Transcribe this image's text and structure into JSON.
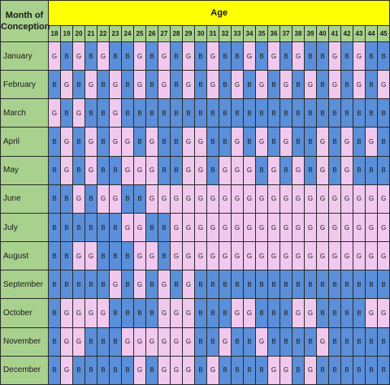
{
  "corner": {
    "line1": "Month of",
    "line2": "Conception"
  },
  "age_title": "Age",
  "colors": {
    "boy": "#5b8fd9",
    "girl": "#f1c9ef",
    "header_green": "#a9d18e",
    "header_yellow": "#ffff00",
    "grid": "#2b2b2b"
  },
  "ages": [
    "18",
    "19",
    "20",
    "21",
    "22",
    "23",
    "24",
    "25",
    "26",
    "27",
    "28",
    "29",
    "30",
    "31",
    "32",
    "33",
    "34",
    "35",
    "36",
    "37",
    "38",
    "39",
    "40",
    "41",
    "42",
    "43",
    "44",
    "45"
  ],
  "months": [
    "January",
    "February",
    "March",
    "April",
    "May",
    "June",
    "July",
    "August",
    "September",
    "October",
    "November",
    "December"
  ],
  "rows": [
    [
      "G",
      "B",
      "G",
      "B",
      "G",
      "B",
      "B",
      "G",
      "B",
      "G",
      "B",
      "G",
      "B",
      "G",
      "B",
      "B",
      "G",
      "B",
      "G",
      "B",
      "G",
      "B",
      "B",
      "G",
      "B",
      "G",
      "B",
      "B"
    ],
    [
      "B",
      "G",
      "B",
      "G",
      "B",
      "G",
      "B",
      "G",
      "B",
      "G",
      "B",
      "G",
      "B",
      "G",
      "B",
      "G",
      "B",
      "G",
      "B",
      "G",
      "B",
      "G",
      "B",
      "G",
      "B",
      "G",
      "B",
      "G"
    ],
    [
      "G",
      "B",
      "G",
      "B",
      "B",
      "G",
      "B",
      "B",
      "B",
      "B",
      "B",
      "B",
      "B",
      "B",
      "B",
      "B",
      "B",
      "B",
      "B",
      "B",
      "B",
      "B",
      "B",
      "B",
      "B",
      "B",
      "B",
      "B"
    ],
    [
      "B",
      "G",
      "B",
      "G",
      "B",
      "G",
      "G",
      "B",
      "G",
      "B",
      "B",
      "G",
      "G",
      "B",
      "B",
      "G",
      "B",
      "G",
      "B",
      "G",
      "B",
      "B",
      "G",
      "B",
      "G",
      "B",
      "G",
      "B"
    ],
    [
      "B",
      "G",
      "B",
      "G",
      "B",
      "B",
      "G",
      "G",
      "G",
      "B",
      "B",
      "G",
      "G",
      "B",
      "G",
      "G",
      "G",
      "B",
      "G",
      "B",
      "G",
      "B",
      "G",
      "B",
      "G",
      "B",
      "B",
      "B"
    ],
    [
      "B",
      "B",
      "G",
      "B",
      "G",
      "G",
      "B",
      "B",
      "G",
      "G",
      "G",
      "G",
      "G",
      "G",
      "G",
      "G",
      "G",
      "G",
      "G",
      "G",
      "G",
      "G",
      "G",
      "G",
      "G",
      "G",
      "G",
      "G"
    ],
    [
      "B",
      "B",
      "B",
      "B",
      "B",
      "B",
      "G",
      "G",
      "B",
      "B",
      "G",
      "G",
      "G",
      "G",
      "G",
      "G",
      "G",
      "G",
      "G",
      "G",
      "G",
      "G",
      "G",
      "G",
      "G",
      "G",
      "G",
      "G"
    ],
    [
      "B",
      "B",
      "G",
      "G",
      "B",
      "B",
      "B",
      "G",
      "G",
      "B",
      "G",
      "G",
      "G",
      "G",
      "G",
      "G",
      "G",
      "G",
      "G",
      "G",
      "G",
      "G",
      "G",
      "G",
      "G",
      "G",
      "G",
      "G"
    ],
    [
      "B",
      "B",
      "B",
      "B",
      "B",
      "G",
      "B",
      "G",
      "B",
      "G",
      "B",
      "G",
      "B",
      "B",
      "B",
      "B",
      "B",
      "B",
      "B",
      "B",
      "B",
      "B",
      "B",
      "B",
      "B",
      "B",
      "B",
      "B"
    ],
    [
      "B",
      "G",
      "G",
      "G",
      "G",
      "B",
      "B",
      "B",
      "B",
      "G",
      "G",
      "G",
      "B",
      "B",
      "B",
      "G",
      "G",
      "B",
      "B",
      "B",
      "G",
      "G",
      "B",
      "B",
      "B",
      "B",
      "G",
      "G"
    ],
    [
      "B",
      "G",
      "G",
      "B",
      "B",
      "B",
      "G",
      "G",
      "G",
      "G",
      "G",
      "G",
      "B",
      "B",
      "G",
      "B",
      "B",
      "G",
      "B",
      "B",
      "B",
      "B",
      "G",
      "B",
      "B",
      "B",
      "B",
      "B"
    ],
    [
      "B",
      "G",
      "B",
      "B",
      "B",
      "B",
      "B",
      "G",
      "B",
      "G",
      "G",
      "G",
      "B",
      "G",
      "B",
      "B",
      "B",
      "B",
      "G",
      "G",
      "B",
      "G",
      "B",
      "B",
      "B",
      "B",
      "B",
      "B"
    ]
  ]
}
